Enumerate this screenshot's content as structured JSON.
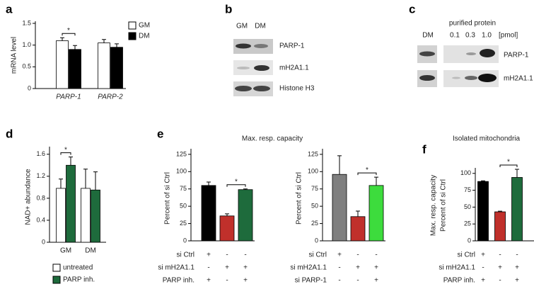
{
  "chart_data": [
    {
      "type": "bar",
      "panel_label": "a",
      "ylabel": "mRNA level",
      "categories": [
        "PARP-1",
        "PARP-2"
      ],
      "series": [
        {
          "name": "GM",
          "color": "#ffffff",
          "values": [
            1.1,
            1.05
          ],
          "errors": [
            0.07,
            0.08
          ]
        },
        {
          "name": "DM",
          "color": "#000000",
          "values": [
            0.9,
            0.95
          ],
          "errors": [
            0.09,
            0.08
          ]
        }
      ],
      "ylim": [
        0,
        1.5
      ],
      "yticks": [
        0,
        0.5,
        {
          "value": 1,
          "label": "1.0"
        },
        1.5
      ],
      "annotations": [
        "*"
      ]
    },
    {
      "type": "bar",
      "panel_label": "d",
      "ylabel": "NAD+ abundance",
      "categories": [
        "GM",
        "DM"
      ],
      "series": [
        {
          "name": "untreated",
          "color": "#ffffff",
          "values": [
            0.98,
            0.98
          ],
          "errors": [
            0.17,
            0.35
          ]
        },
        {
          "name": "PARP inh.",
          "color": "#1e6b3c",
          "values": [
            1.4,
            0.95
          ],
          "errors": [
            0.15,
            0.33
          ]
        }
      ],
      "ylim": [
        0,
        1.7
      ],
      "yticks": [
        0,
        0.4,
        0.8,
        1.2,
        1.6
      ],
      "annotations": [
        "*"
      ]
    },
    {
      "type": "bar",
      "panel_label": "e",
      "title": "Max. resp. capacity",
      "ylabel": "Percent of si Ctrl",
      "values": [
        80,
        36,
        74
      ],
      "errors": [
        5,
        3,
        1
      ],
      "colors": [
        "#000000",
        "#c0302b",
        "#1e6b3c"
      ],
      "ylim": [
        0,
        130
      ],
      "yticks": [
        0,
        25,
        50,
        75,
        100,
        125
      ],
      "annotations": [
        "*"
      ],
      "conditions": {
        "rows": [
          "si Ctrl",
          "si mH2A1.1",
          "PARP inh."
        ],
        "signs": [
          [
            "+",
            "-",
            "-"
          ],
          [
            "-",
            "+",
            "+"
          ],
          [
            "+",
            "-",
            "+"
          ]
        ]
      }
    },
    {
      "type": "bar",
      "ylabel": "Percent of si Ctrl",
      "values": [
        96,
        35,
        80
      ],
      "errors": [
        27,
        8,
        12
      ],
      "colors": [
        "#7f7f7f",
        "#c0302b",
        "#3ddc3d"
      ],
      "ylim": [
        0,
        130
      ],
      "yticks": [
        0,
        25,
        50,
        75,
        100,
        125
      ],
      "annotations": [
        "*"
      ],
      "conditions": {
        "rows": [
          "si Ctrl",
          "si mH2A1.1",
          "si PARP-1"
        ],
        "signs": [
          [
            "+",
            "-",
            "-"
          ],
          [
            "-",
            "+",
            "+"
          ],
          [
            "-",
            "-",
            "+"
          ]
        ]
      }
    },
    {
      "type": "bar",
      "panel_label": "f",
      "title": "Isolated mitochondria",
      "ylabel": [
        "Max. resp. capacity",
        "Percent of si Ctrl"
      ],
      "values": [
        88,
        43,
        94
      ],
      "errors": [
        1,
        1,
        12
      ],
      "colors": [
        "#000000",
        "#c0302b",
        "#1e6b3c"
      ],
      "ylim": [
        0,
        105
      ],
      "yticks": [
        0,
        25,
        50,
        75,
        100
      ],
      "annotations": [
        "*"
      ],
      "conditions": {
        "rows": [
          "si Ctrl",
          "si mH2A1.1",
          "PARP inh."
        ],
        "signs": [
          [
            "+",
            "-",
            "-"
          ],
          [
            "-",
            "+",
            "+"
          ],
          [
            "+",
            "-",
            "+"
          ]
        ]
      }
    }
  ],
  "blots": [
    {
      "panel_label": "b",
      "lanes": [
        "GM",
        "DM"
      ],
      "rows": [
        "PARP-1",
        "mH2A1.1",
        "Histone H3"
      ]
    },
    {
      "panel_label": "c",
      "title": "purified protein",
      "lanes": [
        "DM",
        "0.1",
        "0.3",
        "1.0"
      ],
      "unit": "[pmol]",
      "rows": [
        "PARP-1",
        "mH2A1.1"
      ]
    }
  ]
}
